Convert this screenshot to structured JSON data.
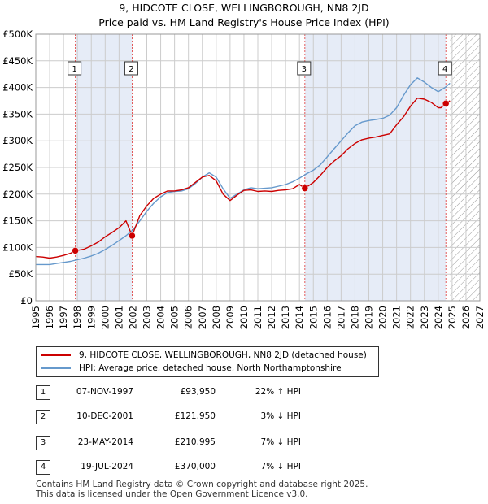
{
  "title_line1": "9, HIDCOTE CLOSE, WELLINGBOROUGH, NN8 2JD",
  "title_line2": "Price paid vs. HM Land Registry's House Price Index (HPI)",
  "chart_data": {
    "type": "line",
    "title": "9, HIDCOTE CLOSE, WELLINGBOROUGH, NN8 2JD",
    "subtitle": "Price paid vs. HM Land Registry's House Price Index (HPI)",
    "xlim": [
      1995,
      2027
    ],
    "ylim": [
      0,
      500000
    ],
    "grid": true,
    "y_ticks": [
      0,
      50000,
      100000,
      150000,
      200000,
      250000,
      300000,
      350000,
      400000,
      450000,
      500000
    ],
    "y_tick_labels": [
      "£0",
      "£50K",
      "£100K",
      "£150K",
      "£200K",
      "£250K",
      "£300K",
      "£350K",
      "£400K",
      "£450K",
      "£500K"
    ],
    "x_ticks": [
      1995,
      1996,
      1997,
      1998,
      1999,
      2000,
      2001,
      2002,
      2003,
      2004,
      2005,
      2006,
      2007,
      2008,
      2009,
      2010,
      2011,
      2012,
      2013,
      2014,
      2015,
      2016,
      2017,
      2018,
      2019,
      2020,
      2021,
      2022,
      2023,
      2024,
      2025,
      2026,
      2027
    ],
    "x_tick_labels": [
      "1995",
      "1996",
      "1997",
      "1998",
      "1999",
      "2000",
      "2001",
      "2002",
      "2003",
      "2004",
      "2005",
      "2006",
      "2007",
      "2008",
      "2009",
      "2010",
      "2011",
      "2012",
      "2013",
      "2014",
      "2015",
      "2016",
      "2017",
      "2018",
      "2019",
      "2020",
      "2021",
      "2022",
      "2023",
      "2024",
      "2025",
      "2026",
      "2027"
    ],
    "shaded_ranges": [
      [
        1997.85,
        2001.94
      ],
      [
        2014.39,
        2024.55
      ]
    ],
    "hatched_from": 2024.85,
    "series": [
      {
        "name": "9, HIDCOTE CLOSE, WELLINGBOROUGH, NN8 2JD (detached house)",
        "color": "#cc0000",
        "x": [
          1995.0,
          1995.5,
          1996.0,
          1996.5,
          1997.0,
          1997.5,
          1997.85,
          1998.5,
          1999.0,
          1999.5,
          2000.0,
          2000.5,
          2001.0,
          2001.5,
          2001.94,
          2002.5,
          2003.0,
          2003.5,
          2004.0,
          2004.5,
          2005.0,
          2005.5,
          2006.0,
          2006.5,
          2007.0,
          2007.5,
          2008.0,
          2008.5,
          2009.0,
          2009.5,
          2010.0,
          2010.5,
          2011.0,
          2011.5,
          2012.0,
          2012.5,
          2013.0,
          2013.5,
          2014.0,
          2014.39,
          2015.0,
          2015.5,
          2016.0,
          2016.5,
          2017.0,
          2017.5,
          2018.0,
          2018.5,
          2019.0,
          2019.5,
          2020.0,
          2020.5,
          2021.0,
          2021.5,
          2022.0,
          2022.5,
          2023.0,
          2023.5,
          2024.0,
          2024.2,
          2024.55,
          2024.85
        ],
        "values": [
          83000,
          82000,
          80000,
          82000,
          85000,
          89000,
          93950,
          97000,
          103000,
          110000,
          120000,
          128000,
          137000,
          150000,
          121950,
          160000,
          178000,
          192000,
          200000,
          206000,
          206000,
          208000,
          212000,
          222000,
          232000,
          235000,
          225000,
          200000,
          188000,
          198000,
          207000,
          208000,
          205000,
          206000,
          205000,
          207000,
          208000,
          210000,
          218000,
          210995,
          222000,
          235000,
          250000,
          262000,
          272000,
          285000,
          295000,
          302000,
          305000,
          307000,
          310000,
          313000,
          330000,
          345000,
          365000,
          380000,
          378000,
          372000,
          362000,
          362000,
          370000,
          375000
        ]
      },
      {
        "name": "HPI: Average price, detached house, North Northamptonshire",
        "color": "#6699cc",
        "x": [
          1995.0,
          1995.5,
          1996.0,
          1996.5,
          1997.0,
          1997.5,
          1998.0,
          1998.5,
          1999.0,
          1999.5,
          2000.0,
          2000.5,
          2001.0,
          2001.5,
          2002.0,
          2002.5,
          2003.0,
          2003.5,
          2004.0,
          2004.5,
          2005.0,
          2005.5,
          2006.0,
          2006.5,
          2007.0,
          2007.5,
          2008.0,
          2008.5,
          2009.0,
          2009.5,
          2010.0,
          2010.5,
          2011.0,
          2011.5,
          2012.0,
          2012.5,
          2013.0,
          2013.5,
          2014.0,
          2014.5,
          2015.0,
          2015.5,
          2016.0,
          2016.5,
          2017.0,
          2017.5,
          2018.0,
          2018.5,
          2019.0,
          2019.5,
          2020.0,
          2020.5,
          2021.0,
          2021.5,
          2022.0,
          2022.5,
          2023.0,
          2023.5,
          2024.0,
          2024.5,
          2024.85
        ],
        "values": [
          68000,
          68000,
          68000,
          70000,
          72000,
          74000,
          77000,
          80000,
          84000,
          89000,
          96000,
          104000,
          113000,
          122000,
          133000,
          150000,
          168000,
          183000,
          195000,
          203000,
          205000,
          206000,
          210000,
          220000,
          232000,
          240000,
          232000,
          210000,
          192000,
          200000,
          208000,
          212000,
          210000,
          211000,
          212000,
          215000,
          218000,
          223000,
          230000,
          238000,
          245000,
          255000,
          270000,
          285000,
          300000,
          315000,
          328000,
          335000,
          338000,
          340000,
          342000,
          348000,
          362000,
          385000,
          405000,
          418000,
          410000,
          400000,
          392000,
          400000,
          408000
        ]
      }
    ],
    "sales": [
      {
        "n": "1",
        "x": 1997.85,
        "price": 93950
      },
      {
        "n": "2",
        "x": 2001.94,
        "price": 121950
      },
      {
        "n": "3",
        "x": 2014.39,
        "price": 210995
      },
      {
        "n": "4",
        "x": 2024.55,
        "price": 370000
      }
    ]
  },
  "legend": {
    "property": "9, HIDCOTE CLOSE, WELLINGBOROUGH, NN8 2JD (detached house)",
    "hpi": "HPI: Average price, detached house, North Northamptonshire"
  },
  "sales_table": [
    {
      "n": "1",
      "date": "07-NOV-1997",
      "price": "£93,950",
      "hpi": "22% ↑ HPI"
    },
    {
      "n": "2",
      "date": "10-DEC-2001",
      "price": "£121,950",
      "hpi": "3% ↓ HPI"
    },
    {
      "n": "3",
      "date": "23-MAY-2014",
      "price": "£210,995",
      "hpi": "7% ↓ HPI"
    },
    {
      "n": "4",
      "date": "19-JUL-2024",
      "price": "£370,000",
      "hpi": "7% ↓ HPI"
    }
  ],
  "footer": {
    "line1": "Contains HM Land Registry data © Crown copyright and database right 2025.",
    "line2": "This data is licensed under the Open Government Licence v3.0."
  },
  "colors": {
    "property": "#cc0000",
    "hpi": "#6699cc",
    "shade": "#e6ecf7",
    "grid": "#cccccc"
  }
}
